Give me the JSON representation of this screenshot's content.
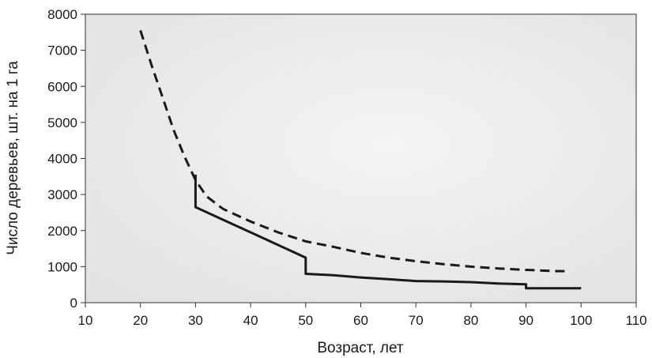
{
  "chart_data": {
    "type": "line",
    "title": "",
    "xlabel": "Возраст, лет",
    "ylabel": "Число деревьев, шт. на 1 га",
    "xlim": [
      10,
      110
    ],
    "ylim": [
      0,
      8000
    ],
    "xticks": [
      "10",
      "20",
      "30",
      "40",
      "50",
      "60",
      "70",
      "80",
      "90",
      "100",
      "110"
    ],
    "yticks": [
      "0",
      "1000",
      "2000",
      "3000",
      "4000",
      "5000",
      "6000",
      "7000",
      "8000"
    ],
    "grid": false,
    "legend": "none",
    "series": [
      {
        "style": "dashed",
        "color": "#1a1a1a",
        "points": [
          [
            20,
            7550
          ],
          [
            22,
            6600
          ],
          [
            24,
            5700
          ],
          [
            26,
            4800
          ],
          [
            28,
            4050
          ],
          [
            30,
            3400
          ],
          [
            32,
            2950
          ],
          [
            35,
            2600
          ],
          [
            40,
            2250
          ],
          [
            45,
            1950
          ],
          [
            50,
            1700
          ],
          [
            55,
            1550
          ],
          [
            60,
            1380
          ],
          [
            65,
            1250
          ],
          [
            70,
            1150
          ],
          [
            75,
            1070
          ],
          [
            80,
            1000
          ],
          [
            85,
            950
          ],
          [
            90,
            910
          ],
          [
            95,
            880
          ],
          [
            98,
            870
          ]
        ]
      },
      {
        "style": "solid",
        "color": "#1a1a1a",
        "points": [
          [
            30,
            3550
          ],
          [
            30,
            2650
          ],
          [
            35,
            2300
          ],
          [
            40,
            1950
          ],
          [
            45,
            1600
          ],
          [
            50,
            1250
          ],
          [
            50,
            800
          ],
          [
            55,
            760
          ],
          [
            60,
            700
          ],
          [
            65,
            650
          ],
          [
            70,
            600
          ],
          [
            75,
            590
          ],
          [
            80,
            570
          ],
          [
            85,
            530
          ],
          [
            90,
            510
          ],
          [
            90,
            400
          ],
          [
            95,
            400
          ],
          [
            100,
            400
          ]
        ]
      }
    ]
  }
}
